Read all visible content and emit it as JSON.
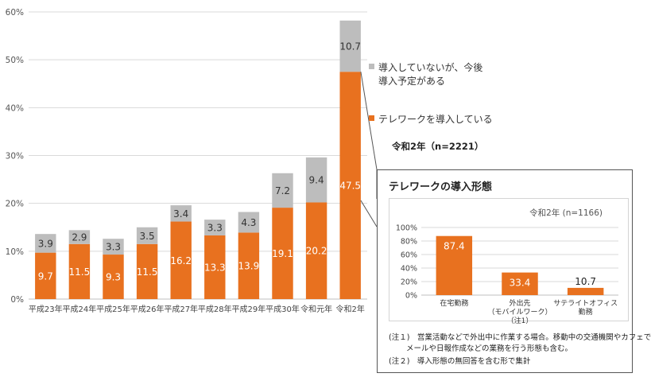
{
  "chart_data": [
    {
      "type": "bar",
      "stacked": true,
      "categories": [
        "平成23年",
        "平成24年",
        "平成25年",
        "平成26年",
        "平成27年",
        "平成28年",
        "平成29年",
        "平成30年",
        "令和元年",
        "令和2年"
      ],
      "series": [
        {
          "name": "テレワークを導入している",
          "color": "#e8711f",
          "values": [
            9.7,
            11.5,
            9.3,
            11.5,
            16.2,
            13.3,
            13.9,
            19.1,
            20.2,
            47.5
          ]
        },
        {
          "name": "導入していないが、今後導入予定がある",
          "color": "#bdbdbd",
          "values": [
            3.9,
            2.9,
            3.3,
            3.5,
            3.4,
            3.3,
            4.3,
            7.2,
            9.4,
            10.7
          ]
        }
      ],
      "ylim": [
        0,
        60
      ],
      "yticks": [
        "0%",
        "10%",
        "20%",
        "30%",
        "40%",
        "50%",
        "60%"
      ],
      "grid": true,
      "legend": "right"
    },
    {
      "type": "bar",
      "title": "テレワークの導入形態",
      "note": "令和2年 (n=1166)",
      "categories": [
        [
          "在宅勤務"
        ],
        [
          "外出先",
          "（モバイルワーク）",
          "（注1）"
        ],
        [
          "サテライトオフィス",
          "勤務"
        ]
      ],
      "values": [
        87.4,
        33.4,
        10.7
      ],
      "value_labels": [
        "87.4",
        "33.4",
        "10.7"
      ],
      "color": "#e8711f",
      "ylim": [
        0,
        100
      ],
      "yticks": [
        "0%",
        "20%",
        "40%",
        "60%",
        "80%",
        "100%"
      ],
      "grid": true
    }
  ],
  "legend": {
    "gray_line1": "導入していないが、今後",
    "gray_line2": "導入予定がある",
    "orange": "テレワークを導入している",
    "note": "令和2年（n=2221）"
  },
  "inset": {
    "title": "テレワークの導入形態",
    "note1_line1": "(注１)　営業活動などで外出中に作業する場合。移動中の交通機関やカフェで",
    "note1_line2": "メールや日報作成などの業務を行う形態も含む。",
    "note2": "(注２)　導入形態の無回答を含む形で集計"
  },
  "colors": {
    "orange": "#e8711f",
    "gray": "#bdbdbd",
    "grid": "#d9d9d9"
  }
}
